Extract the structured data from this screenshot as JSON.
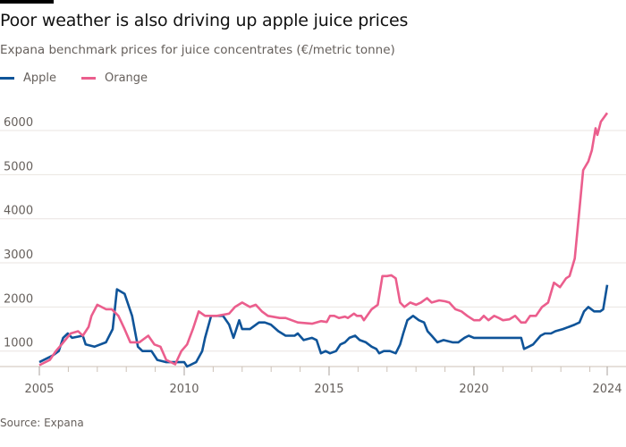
{
  "title": "Poor weather is also driving up apple juice prices",
  "subtitle": "Expana benchmark prices for juice concentrates (€/metric tonne)",
  "source": "Source: Expana",
  "colors": {
    "apple": "#0f5499",
    "orange": "#eb5e8d",
    "grid": "#e9e4e0",
    "axis": "#ccc1b7"
  },
  "legend": [
    {
      "name": "Apple",
      "color": "#0f5499"
    },
    {
      "name": "Orange",
      "color": "#eb5e8d"
    }
  ],
  "chart_data": {
    "type": "line",
    "title": "Poor weather is also driving up apple juice prices",
    "subtitle": "Expana benchmark prices for juice concentrates (€/metric tonne)",
    "xlabel": "",
    "ylabel": "",
    "ylim": [
      650,
      6500
    ],
    "yticks": [
      1000,
      2000,
      3000,
      4000,
      5000,
      6000
    ],
    "xticks": [
      "2005",
      "2010",
      "2015",
      "2020",
      "2024"
    ],
    "grid": true,
    "legend_position": "top-left",
    "series": [
      {
        "name": "Apple",
        "color": "#0f5499",
        "points": [
          [
            2005.0,
            750
          ],
          [
            2005.46,
            900
          ],
          [
            2005.67,
            1000
          ],
          [
            2005.82,
            1300
          ],
          [
            2005.98,
            1400
          ],
          [
            2006.13,
            1300
          ],
          [
            2006.5,
            1350
          ],
          [
            2006.6,
            1150
          ],
          [
            2006.9,
            1100
          ],
          [
            2007.3,
            1200
          ],
          [
            2007.53,
            1500
          ],
          [
            2007.68,
            2400
          ],
          [
            2007.94,
            2300
          ],
          [
            2008.2,
            1800
          ],
          [
            2008.4,
            1100
          ],
          [
            2008.56,
            1000
          ],
          [
            2008.87,
            1000
          ],
          [
            2009.07,
            800
          ],
          [
            2009.38,
            750
          ],
          [
            2010.0,
            750
          ],
          [
            2010.1,
            650
          ],
          [
            2010.41,
            750
          ],
          [
            2010.62,
            1000
          ],
          [
            2010.72,
            1300
          ],
          [
            2010.93,
            1800
          ],
          [
            2011.34,
            1800
          ],
          [
            2011.55,
            1600
          ],
          [
            2011.7,
            1300
          ],
          [
            2011.9,
            1700
          ],
          [
            2012.0,
            1500
          ],
          [
            2012.27,
            1500
          ],
          [
            2012.58,
            1650
          ],
          [
            2012.78,
            1650
          ],
          [
            2012.99,
            1600
          ],
          [
            2013.25,
            1450
          ],
          [
            2013.5,
            1350
          ],
          [
            2013.81,
            1350
          ],
          [
            2013.92,
            1400
          ],
          [
            2014.12,
            1250
          ],
          [
            2014.41,
            1300
          ],
          [
            2014.57,
            1250
          ],
          [
            2014.72,
            950
          ],
          [
            2014.88,
            1000
          ],
          [
            2015.03,
            950
          ],
          [
            2015.24,
            1000
          ],
          [
            2015.39,
            1150
          ],
          [
            2015.55,
            1200
          ],
          [
            2015.7,
            1300
          ],
          [
            2015.9,
            1350
          ],
          [
            2016.06,
            1250
          ],
          [
            2016.27,
            1200
          ],
          [
            2016.47,
            1100
          ],
          [
            2016.63,
            1050
          ],
          [
            2016.73,
            950
          ],
          [
            2016.89,
            1000
          ],
          [
            2017.1,
            1000
          ],
          [
            2017.3,
            950
          ],
          [
            2017.45,
            1150
          ],
          [
            2017.56,
            1400
          ],
          [
            2017.7,
            1700
          ],
          [
            2017.9,
            1800
          ],
          [
            2018.1,
            1700
          ],
          [
            2018.28,
            1650
          ],
          [
            2018.4,
            1450
          ],
          [
            2018.54,
            1350
          ],
          [
            2018.74,
            1200
          ],
          [
            2018.95,
            1250
          ],
          [
            2019.26,
            1200
          ],
          [
            2019.46,
            1200
          ],
          [
            2019.67,
            1300
          ],
          [
            2019.82,
            1350
          ],
          [
            2020.0,
            1300
          ],
          [
            2020.7,
            1300
          ],
          [
            2021.63,
            1300
          ],
          [
            2021.73,
            1050
          ],
          [
            2021.89,
            1100
          ],
          [
            2022.04,
            1150
          ],
          [
            2022.3,
            1350
          ],
          [
            2022.45,
            1400
          ],
          [
            2022.66,
            1400
          ],
          [
            2022.81,
            1450
          ],
          [
            2023.07,
            1500
          ],
          [
            2023.28,
            1550
          ],
          [
            2023.48,
            1600
          ],
          [
            2023.64,
            1650
          ],
          [
            2023.8,
            1900
          ],
          [
            2023.95,
            2000
          ],
          [
            2024.15,
            1900
          ],
          [
            2024.36,
            1900
          ],
          [
            2024.46,
            1950
          ],
          [
            2024.6,
            2500
          ]
        ]
      },
      {
        "name": "Orange",
        "color": "#eb5e8d",
        "points": [
          [
            2005.0,
            680
          ],
          [
            2005.36,
            800
          ],
          [
            2005.57,
            1000
          ],
          [
            2005.77,
            1150
          ],
          [
            2006.08,
            1400
          ],
          [
            2006.34,
            1450
          ],
          [
            2006.5,
            1350
          ],
          [
            2006.7,
            1550
          ],
          [
            2006.8,
            1800
          ],
          [
            2007.0,
            2050
          ],
          [
            2007.3,
            1950
          ],
          [
            2007.5,
            1950
          ],
          [
            2007.73,
            1800
          ],
          [
            2007.94,
            1500
          ],
          [
            2008.14,
            1200
          ],
          [
            2008.45,
            1200
          ],
          [
            2008.76,
            1350
          ],
          [
            2008.97,
            1150
          ],
          [
            2009.18,
            1100
          ],
          [
            2009.38,
            800
          ],
          [
            2009.69,
            700
          ],
          [
            2009.9,
            1000
          ],
          [
            2010.1,
            1150
          ],
          [
            2010.3,
            1500
          ],
          [
            2010.5,
            1900
          ],
          [
            2010.72,
            1800
          ],
          [
            2010.93,
            1800
          ],
          [
            2011.13,
            1800
          ],
          [
            2011.55,
            1850
          ],
          [
            2011.75,
            2000
          ],
          [
            2012.0,
            2100
          ],
          [
            2012.27,
            2000
          ],
          [
            2012.47,
            2050
          ],
          [
            2012.68,
            1900
          ],
          [
            2012.89,
            1800
          ],
          [
            2013.3,
            1750
          ],
          [
            2013.5,
            1750
          ],
          [
            2013.92,
            1650
          ],
          [
            2014.41,
            1620
          ],
          [
            2014.72,
            1680
          ],
          [
            2014.92,
            1660
          ],
          [
            2015.03,
            1800
          ],
          [
            2015.18,
            1800
          ],
          [
            2015.34,
            1750
          ],
          [
            2015.55,
            1780
          ],
          [
            2015.65,
            1750
          ],
          [
            2015.86,
            1850
          ],
          [
            2015.96,
            1800
          ],
          [
            2016.11,
            1800
          ],
          [
            2016.2,
            1700
          ],
          [
            2016.47,
            1950
          ],
          [
            2016.68,
            2050
          ],
          [
            2016.84,
            2700
          ],
          [
            2017.0,
            2700
          ],
          [
            2017.15,
            2720
          ],
          [
            2017.3,
            2650
          ],
          [
            2017.45,
            2100
          ],
          [
            2017.6,
            2000
          ],
          [
            2017.8,
            2100
          ],
          [
            2018.0,
            2050
          ],
          [
            2018.17,
            2100
          ],
          [
            2018.38,
            2200
          ],
          [
            2018.54,
            2100
          ],
          [
            2018.8,
            2150
          ],
          [
            2019.0,
            2130
          ],
          [
            2019.15,
            2100
          ],
          [
            2019.36,
            1950
          ],
          [
            2019.57,
            1900
          ],
          [
            2019.77,
            1800
          ],
          [
            2020.0,
            1700
          ],
          [
            2020.2,
            1700
          ],
          [
            2020.34,
            1800
          ],
          [
            2020.5,
            1700
          ],
          [
            2020.7,
            1800
          ],
          [
            2020.86,
            1750
          ],
          [
            2021.0,
            1700
          ],
          [
            2021.22,
            1720
          ],
          [
            2021.42,
            1800
          ],
          [
            2021.63,
            1650
          ],
          [
            2021.78,
            1650
          ],
          [
            2021.94,
            1800
          ],
          [
            2022.14,
            1800
          ],
          [
            2022.35,
            2000
          ],
          [
            2022.56,
            2100
          ],
          [
            2022.76,
            2550
          ],
          [
            2022.97,
            2450
          ],
          [
            2023.18,
            2650
          ],
          [
            2023.3,
            2700
          ],
          [
            2023.48,
            3100
          ],
          [
            2023.64,
            4200
          ],
          [
            2023.77,
            5100
          ],
          [
            2023.95,
            5300
          ],
          [
            2024.07,
            5550
          ],
          [
            2024.2,
            6050
          ],
          [
            2024.26,
            5900
          ],
          [
            2024.38,
            6200
          ],
          [
            2024.6,
            6400
          ]
        ]
      }
    ]
  }
}
